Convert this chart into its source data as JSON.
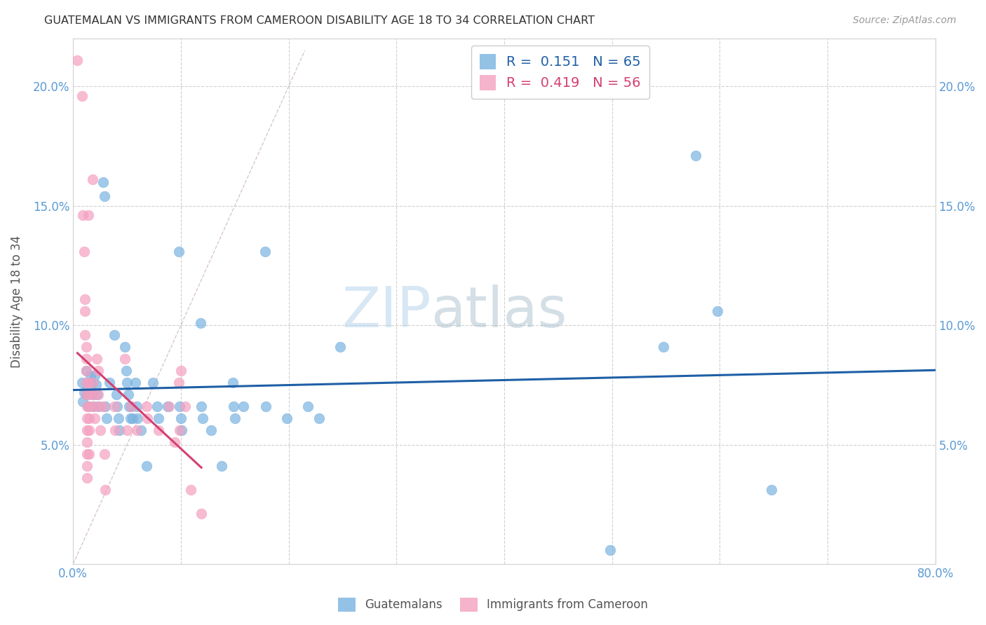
{
  "title": "GUATEMALAN VS IMMIGRANTS FROM CAMEROON DISABILITY AGE 18 TO 34 CORRELATION CHART",
  "source": "Source: ZipAtlas.com",
  "ylabel": "Disability Age 18 to 34",
  "xlim": [
    0.0,
    0.8
  ],
  "ylim": [
    0.0,
    0.22
  ],
  "watermark_zip": "ZIP",
  "watermark_atlas": "atlas",
  "blue_color": "#7ab3e0",
  "pink_color": "#f4a0c0",
  "trendline_blue_color": "#1f5fa6",
  "trendline_pink_color": "#d44070",
  "trendline_dashed_color": "#c8b0b8",
  "blue_points": [
    [
      0.008,
      0.076
    ],
    [
      0.009,
      0.068
    ],
    [
      0.01,
      0.072
    ],
    [
      0.012,
      0.081
    ],
    [
      0.013,
      0.071
    ],
    [
      0.014,
      0.066
    ],
    [
      0.016,
      0.079
    ],
    [
      0.017,
      0.075
    ],
    [
      0.018,
      0.071
    ],
    [
      0.019,
      0.066
    ],
    [
      0.02,
      0.079
    ],
    [
      0.021,
      0.075
    ],
    [
      0.022,
      0.071
    ],
    [
      0.023,
      0.066
    ],
    [
      0.028,
      0.16
    ],
    [
      0.029,
      0.154
    ],
    [
      0.03,
      0.066
    ],
    [
      0.031,
      0.061
    ],
    [
      0.034,
      0.076
    ],
    [
      0.038,
      0.096
    ],
    [
      0.04,
      0.071
    ],
    [
      0.041,
      0.066
    ],
    [
      0.042,
      0.061
    ],
    [
      0.043,
      0.056
    ],
    [
      0.048,
      0.091
    ],
    [
      0.049,
      0.081
    ],
    [
      0.05,
      0.076
    ],
    [
      0.051,
      0.071
    ],
    [
      0.052,
      0.066
    ],
    [
      0.053,
      0.061
    ],
    [
      0.054,
      0.066
    ],
    [
      0.055,
      0.061
    ],
    [
      0.058,
      0.076
    ],
    [
      0.059,
      0.066
    ],
    [
      0.06,
      0.061
    ],
    [
      0.063,
      0.056
    ],
    [
      0.068,
      0.041
    ],
    [
      0.074,
      0.076
    ],
    [
      0.078,
      0.066
    ],
    [
      0.079,
      0.061
    ],
    [
      0.088,
      0.066
    ],
    [
      0.098,
      0.131
    ],
    [
      0.099,
      0.066
    ],
    [
      0.1,
      0.061
    ],
    [
      0.101,
      0.056
    ],
    [
      0.118,
      0.101
    ],
    [
      0.119,
      0.066
    ],
    [
      0.12,
      0.061
    ],
    [
      0.128,
      0.056
    ],
    [
      0.138,
      0.041
    ],
    [
      0.148,
      0.076
    ],
    [
      0.149,
      0.066
    ],
    [
      0.15,
      0.061
    ],
    [
      0.158,
      0.066
    ],
    [
      0.178,
      0.131
    ],
    [
      0.179,
      0.066
    ],
    [
      0.198,
      0.061
    ],
    [
      0.218,
      0.066
    ],
    [
      0.228,
      0.061
    ],
    [
      0.248,
      0.091
    ],
    [
      0.548,
      0.091
    ],
    [
      0.578,
      0.171
    ],
    [
      0.598,
      0.106
    ],
    [
      0.648,
      0.031
    ],
    [
      0.498,
      0.006
    ]
  ],
  "pink_points": [
    [
      0.004,
      0.211
    ],
    [
      0.008,
      0.196
    ],
    [
      0.009,
      0.146
    ],
    [
      0.01,
      0.131
    ],
    [
      0.011,
      0.111
    ],
    [
      0.011,
      0.106
    ],
    [
      0.011,
      0.096
    ],
    [
      0.012,
      0.091
    ],
    [
      0.012,
      0.086
    ],
    [
      0.012,
      0.081
    ],
    [
      0.012,
      0.076
    ],
    [
      0.012,
      0.071
    ],
    [
      0.013,
      0.066
    ],
    [
      0.013,
      0.061
    ],
    [
      0.013,
      0.056
    ],
    [
      0.013,
      0.051
    ],
    [
      0.013,
      0.046
    ],
    [
      0.013,
      0.041
    ],
    [
      0.013,
      0.036
    ],
    [
      0.014,
      0.146
    ],
    [
      0.014,
      0.076
    ],
    [
      0.015,
      0.071
    ],
    [
      0.015,
      0.066
    ],
    [
      0.015,
      0.061
    ],
    [
      0.015,
      0.056
    ],
    [
      0.015,
      0.046
    ],
    [
      0.018,
      0.161
    ],
    [
      0.018,
      0.076
    ],
    [
      0.019,
      0.071
    ],
    [
      0.019,
      0.066
    ],
    [
      0.02,
      0.061
    ],
    [
      0.022,
      0.086
    ],
    [
      0.023,
      0.081
    ],
    [
      0.023,
      0.071
    ],
    [
      0.024,
      0.066
    ],
    [
      0.025,
      0.056
    ],
    [
      0.028,
      0.066
    ],
    [
      0.029,
      0.046
    ],
    [
      0.03,
      0.031
    ],
    [
      0.038,
      0.066
    ],
    [
      0.039,
      0.056
    ],
    [
      0.048,
      0.086
    ],
    [
      0.05,
      0.056
    ],
    [
      0.054,
      0.066
    ],
    [
      0.059,
      0.056
    ],
    [
      0.068,
      0.066
    ],
    [
      0.069,
      0.061
    ],
    [
      0.079,
      0.056
    ],
    [
      0.089,
      0.066
    ],
    [
      0.094,
      0.051
    ],
    [
      0.098,
      0.076
    ],
    [
      0.099,
      0.056
    ],
    [
      0.1,
      0.081
    ],
    [
      0.104,
      0.066
    ],
    [
      0.109,
      0.031
    ],
    [
      0.119,
      0.021
    ]
  ]
}
